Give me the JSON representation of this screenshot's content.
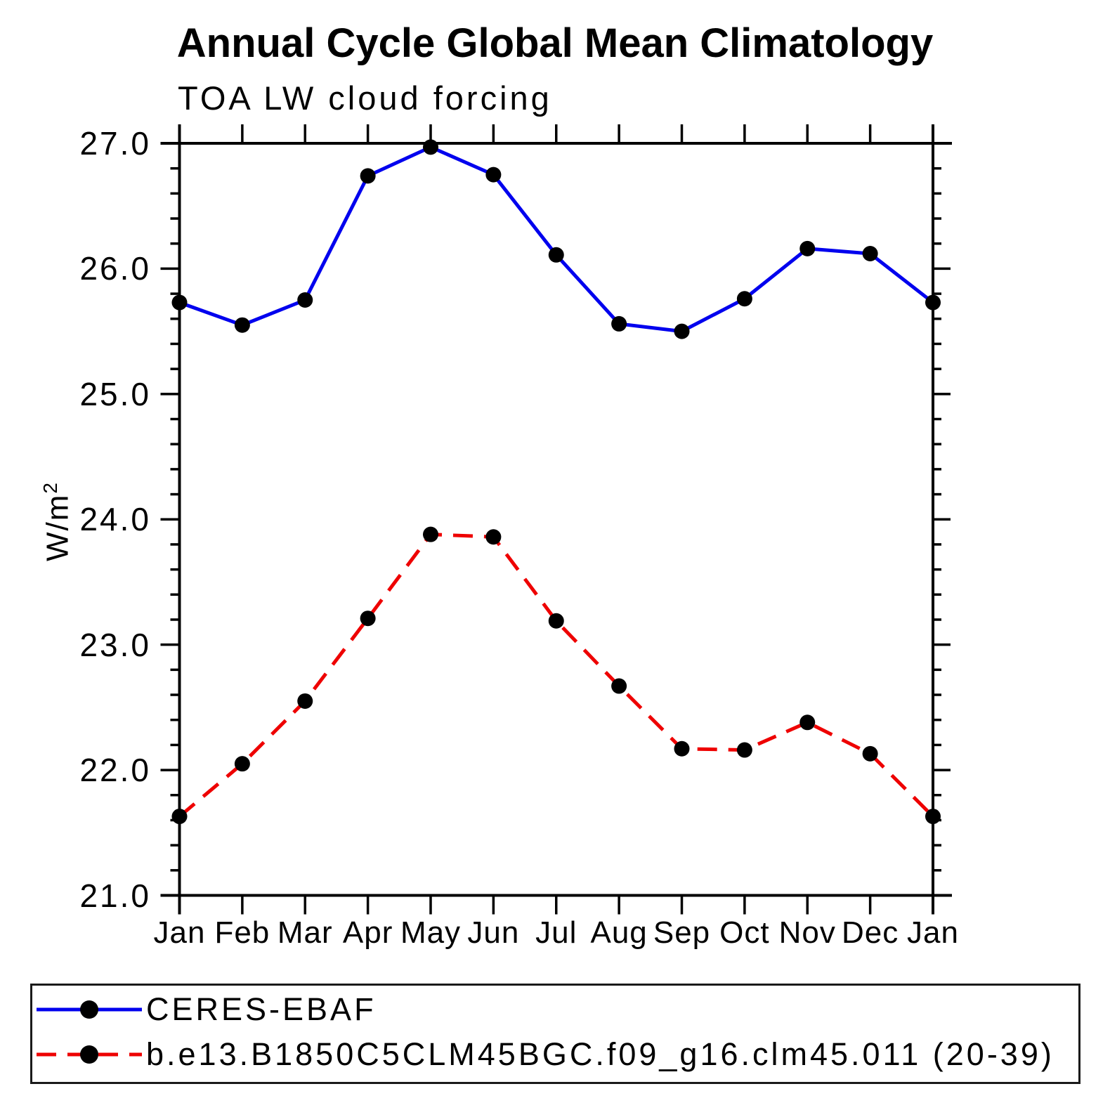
{
  "header": {
    "title": "Annual Cycle Global Mean Climatology",
    "subtitle": "TOA LW cloud forcing"
  },
  "chart_data": {
    "type": "line",
    "title": "Annual Cycle Global Mean Climatology",
    "subtitle": "TOA LW cloud forcing",
    "categories": [
      "Jan",
      "Feb",
      "Mar",
      "Apr",
      "May",
      "Jun",
      "Jul",
      "Aug",
      "Sep",
      "Oct",
      "Nov",
      "Dec",
      "Jan"
    ],
    "series": [
      {
        "name": "CERES-EBAF",
        "color": "#0000ee",
        "line_style": "solid",
        "marker": "filled-circle",
        "values": [
          25.73,
          25.55,
          25.75,
          26.74,
          26.97,
          26.75,
          26.11,
          25.56,
          25.5,
          25.76,
          26.16,
          26.12,
          25.73
        ]
      },
      {
        "name": "b.e13.B1850C5CLM45BGC.f09_g16.clm45.011 (20-39)",
        "color": "#ee0000",
        "line_style": "dashed",
        "marker": "filled-circle",
        "values": [
          21.63,
          22.05,
          22.55,
          23.21,
          23.88,
          23.86,
          23.19,
          22.67,
          22.17,
          22.16,
          22.38,
          22.13,
          21.63
        ]
      }
    ],
    "marker_color": "#000000",
    "axis_color": "#000000",
    "xlabel": "",
    "ylabel": "W/m²",
    "ylabel_parts": {
      "base": "W/m",
      "exp": "2"
    },
    "ylim": [
      21.0,
      27.0
    ],
    "ytick_values": [
      21,
      22,
      23,
      24,
      25,
      26,
      27
    ],
    "ytick_labels": [
      "21.0",
      "22.0",
      "23.0",
      "24.0",
      "25.0",
      "26.0",
      "27.0"
    ],
    "ytick_minor_step": 0.2,
    "grid": "off",
    "legend_position": "bottom"
  }
}
